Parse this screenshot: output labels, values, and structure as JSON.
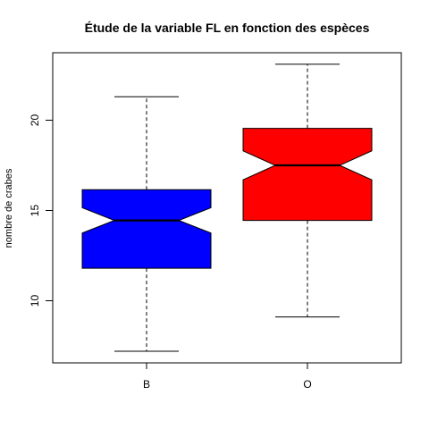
{
  "chart_data": {
    "type": "boxplot",
    "title": "Étude de la variable FL en fonction des espèces",
    "xlabel": "",
    "ylabel": "nombre de crabes",
    "ylim": [
      6.5,
      23.7
    ],
    "yticks": [
      10,
      15,
      20
    ],
    "notched": true,
    "grid": false,
    "categories": [
      "B",
      "O"
    ],
    "boxes": [
      {
        "category": "B",
        "min": 7.2,
        "q1": 11.8,
        "median": 14.45,
        "q3": 16.15,
        "max": 21.3,
        "notch_low": 13.75,
        "notch_high": 15.15,
        "color": "#0000ff"
      },
      {
        "category": "O",
        "min": 9.1,
        "q1": 14.45,
        "median": 17.5,
        "q3": 19.55,
        "max": 23.1,
        "notch_low": 16.7,
        "notch_high": 18.3,
        "color": "#ff0000"
      }
    ]
  }
}
